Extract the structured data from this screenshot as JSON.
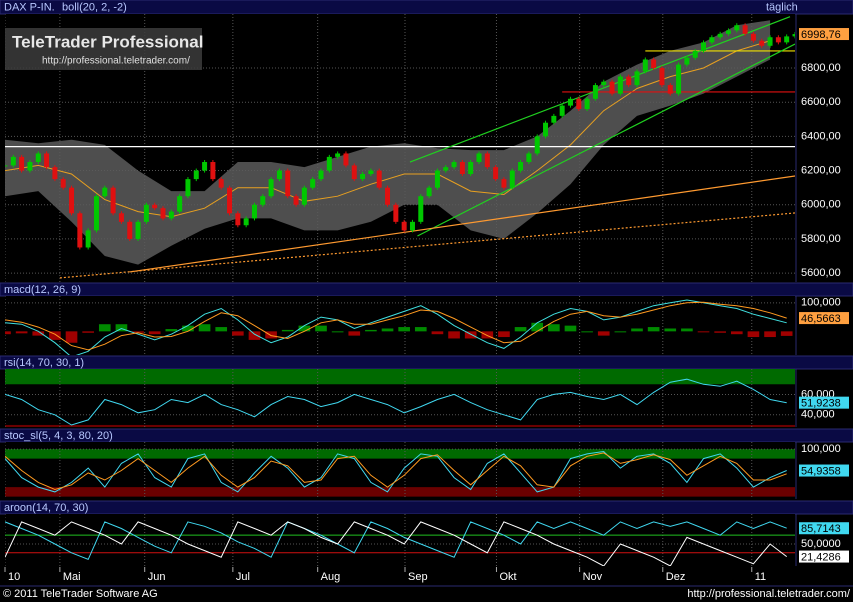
{
  "header": {
    "period": "täglich"
  },
  "watermark": {
    "title": "TeleTrader Professional",
    "url": "http://professional.teletrader.com/"
  },
  "footer": {
    "copyright": "© 2011 TeleTrader Software AG",
    "url": "http://professional.teletrader.com/"
  },
  "chart_data": [
    {
      "type": "candlestick",
      "title": "DAX P-IN.",
      "subtitle": "boll(20, 2, -2)",
      "xlim": [
        0,
        95
      ],
      "ylim": [
        5548,
        7116
      ],
      "yticks": [
        {
          "value": 5600,
          "label": "5600,00"
        },
        {
          "value": 5800,
          "label": "5800,00"
        },
        {
          "value": 6000,
          "label": "6000,00"
        },
        {
          "value": 6200,
          "label": "6200,00"
        },
        {
          "value": 6400,
          "label": "6400,00"
        },
        {
          "value": 6600,
          "label": "6600,00"
        },
        {
          "value": 6800,
          "label": "6800,00"
        }
      ],
      "up_color": "#00c800",
      "down_color": "#e01010",
      "closes": [
        6230,
        6280,
        6200,
        6250,
        6300,
        6220,
        6150,
        6100,
        5950,
        5750,
        5850,
        6050,
        6100,
        5950,
        5900,
        5800,
        5900,
        6000,
        5980,
        5920,
        5960,
        6050,
        6150,
        6200,
        6250,
        6150,
        6100,
        5950,
        5880,
        5920,
        6000,
        6050,
        6150,
        6200,
        6050,
        6000,
        6100,
        6150,
        6200,
        6280,
        6300,
        6230,
        6150,
        6180,
        6200,
        6100,
        6000,
        5900,
        5850,
        5900,
        6050,
        6100,
        6200,
        6220,
        6250,
        6180,
        6250,
        6300,
        6220,
        6150,
        6100,
        6200,
        6250,
        6300,
        6400,
        6480,
        6520,
        6580,
        6620,
        6560,
        6620,
        6700,
        6720,
        6650,
        6750,
        6700,
        6780,
        6850,
        6800,
        6700,
        6650,
        6820,
        6860,
        6900,
        6950,
        6980,
        7000,
        7020,
        7050,
        7000,
        6960,
        6930,
        6980,
        6950,
        6985,
        6998.76
      ],
      "bollinger": {
        "fill": "#5c5c5c",
        "color": "#e8a020",
        "x": [
          0,
          4,
          8,
          12,
          16,
          20,
          24,
          28,
          32,
          36,
          40,
          44,
          48,
          52,
          56,
          60,
          64,
          68,
          72,
          76,
          80,
          84,
          88,
          92
        ],
        "upper": [
          6380,
          6360,
          6380,
          6350,
          6200,
          6080,
          6080,
          6250,
          6250,
          6220,
          6280,
          6340,
          6360,
          6330,
          6320,
          6320,
          6400,
          6550,
          6720,
          6820,
          6900,
          6950,
          7050,
          7080
        ],
        "middle": [
          6200,
          6230,
          6180,
          6030,
          5960,
          5930,
          5980,
          6100,
          6100,
          6020,
          6050,
          6120,
          6180,
          6180,
          6080,
          6060,
          6200,
          6350,
          6550,
          6680,
          6750,
          6800,
          6900,
          6960
        ],
        "lower": [
          6050,
          6080,
          5900,
          5700,
          5650,
          5760,
          5860,
          5920,
          5920,
          5850,
          5850,
          5900,
          6000,
          6000,
          5850,
          5800,
          5950,
          6120,
          6350,
          6520,
          6580,
          6650,
          6750,
          6850
        ]
      },
      "trendlines": [
        {
          "color": "#ffffff",
          "dash": false,
          "x": [
            0,
            95
          ],
          "values": [
            6340,
            6340
          ]
        },
        {
          "color": "#f0e000",
          "dash": false,
          "x": [
            77,
            95
          ],
          "values": [
            6900,
            6900
          ]
        },
        {
          "color": "#e01010",
          "dash": false,
          "x": [
            67,
            95
          ],
          "values": [
            6660,
            6660
          ]
        },
        {
          "color": "#20d020",
          "dash": false,
          "x": [
            48.7,
            94.4
          ],
          "values": [
            6250,
            7100
          ]
        },
        {
          "color": "#20d020",
          "dash": false,
          "x": [
            49.6,
            95
          ],
          "values": [
            5817,
            6940
          ]
        },
        {
          "color": "#ff9a30",
          "dash": false,
          "x": [
            15,
            95
          ],
          "values": [
            5607,
            6168
          ]
        },
        {
          "color": "#ff9a30",
          "dash": true,
          "x": [
            6.6,
            95
          ],
          "values": [
            5572,
            5952
          ]
        }
      ],
      "markers": [
        {
          "value": 6998.76,
          "label": "6998,76",
          "color": "#ffa040"
        }
      ]
    },
    {
      "type": "line",
      "title": "macd(12, 26, 9)",
      "xlim": [
        0,
        95
      ],
      "ylim": [
        -83,
        124
      ],
      "yticks": [
        {
          "value": 100,
          "label": "100,000"
        }
      ],
      "x": [
        0,
        2,
        4,
        6,
        8,
        10,
        12,
        14,
        16,
        18,
        20,
        22,
        24,
        26,
        28,
        30,
        32,
        34,
        36,
        38,
        40,
        42,
        44,
        46,
        48,
        50,
        52,
        54,
        56,
        58,
        60,
        62,
        64,
        66,
        68,
        70,
        72,
        74,
        76,
        78,
        80,
        82,
        84,
        86,
        88,
        90,
        92,
        94
      ],
      "histogram": {
        "up_color": "#008a00",
        "down_color": "#a00000",
        "values": [
          -10,
          -7,
          -15,
          -30,
          -40,
          -5,
          25,
          25,
          -5,
          -10,
          8,
          20,
          25,
          15,
          -15,
          -30,
          -25,
          5,
          20,
          20,
          0,
          -15,
          5,
          10,
          15,
          15,
          -10,
          -25,
          -25,
          -25,
          -20,
          15,
          30,
          25,
          20,
          0,
          -15,
          0,
          10,
          15,
          10,
          10,
          -2,
          -5,
          -10,
          -20,
          -20,
          -16
        ]
      },
      "series": [
        {
          "color": "#40e0e0",
          "values": [
            30,
            25,
            0,
            -40,
            -90,
            -70,
            -20,
            10,
            -10,
            -30,
            -10,
            20,
            60,
            80,
            40,
            -10,
            -40,
            -20,
            20,
            50,
            40,
            10,
            30,
            50,
            70,
            90,
            60,
            20,
            -10,
            -40,
            -60,
            -20,
            30,
            60,
            80,
            70,
            40,
            50,
            70,
            90,
            100,
            110,
            100,
            90,
            80,
            60,
            45,
            30
          ]
        },
        {
          "color": "#ff9a20",
          "values": [
            40,
            32,
            15,
            -10,
            -50,
            -65,
            -45,
            -15,
            -5,
            -20,
            -18,
            0,
            35,
            65,
            55,
            20,
            -15,
            -25,
            0,
            30,
            40,
            25,
            25,
            40,
            55,
            75,
            70,
            45,
            15,
            -15,
            -40,
            -35,
            0,
            35,
            60,
            70,
            55,
            50,
            60,
            75,
            90,
            100,
            102,
            95,
            90,
            80,
            65,
            46.5663
          ]
        }
      ],
      "markers": [
        {
          "value": 46.5663,
          "label": "46,5663",
          "color": "#ffa040"
        }
      ]
    },
    {
      "type": "line",
      "title": "rsi(14, 70, 30, 1)",
      "xlim": [
        0,
        95
      ],
      "ylim": [
        28,
        85
      ],
      "yticks": [
        {
          "value": 40,
          "label": "40,000"
        },
        {
          "value": 60,
          "label": "60,000"
        }
      ],
      "bands": [
        {
          "from": 70,
          "to": 85,
          "color": "#006a00"
        },
        {
          "from": 28,
          "to": 30,
          "color": "#6a0000"
        }
      ],
      "x": [
        0,
        2,
        4,
        6,
        8,
        10,
        12,
        14,
        16,
        18,
        20,
        22,
        24,
        26,
        28,
        30,
        32,
        34,
        36,
        38,
        40,
        42,
        44,
        46,
        48,
        50,
        52,
        54,
        56,
        58,
        60,
        62,
        64,
        66,
        68,
        70,
        72,
        74,
        76,
        78,
        80,
        82,
        84,
        86,
        88,
        90,
        92,
        94
      ],
      "series": [
        {
          "color": "#40d8f0",
          "values": [
            60,
            55,
            45,
            40,
            30,
            35,
            55,
            50,
            42,
            45,
            55,
            52,
            60,
            50,
            45,
            38,
            50,
            58,
            55,
            48,
            52,
            60,
            55,
            50,
            42,
            48,
            55,
            60,
            52,
            45,
            40,
            35,
            55,
            60,
            62,
            58,
            55,
            60,
            50,
            62,
            72,
            75,
            70,
            68,
            73,
            65,
            55,
            51.9238
          ]
        }
      ],
      "markers": [
        {
          "value": 51.9238,
          "label": "51,9238",
          "color": "#40d8f0"
        }
      ]
    },
    {
      "type": "line",
      "title": "stoc_sl(5, 4, 3, 80, 20)",
      "xlim": [
        0,
        95
      ],
      "ylim": [
        -5,
        115
      ],
      "yticks": [
        {
          "value": 100,
          "label": "100,000"
        }
      ],
      "bands": [
        {
          "from": 80,
          "to": 100,
          "color": "#006a00"
        },
        {
          "from": 0,
          "to": 20,
          "color": "#6a0000"
        }
      ],
      "x": [
        0,
        2,
        4,
        6,
        8,
        10,
        12,
        14,
        16,
        18,
        20,
        22,
        24,
        26,
        28,
        30,
        32,
        34,
        36,
        38,
        40,
        42,
        44,
        46,
        48,
        50,
        52,
        54,
        56,
        58,
        60,
        62,
        64,
        66,
        68,
        70,
        72,
        74,
        76,
        78,
        80,
        82,
        84,
        86,
        88,
        90,
        92,
        94
      ],
      "series": [
        {
          "color": "#40d8f0",
          "values": [
            80,
            40,
            20,
            10,
            30,
            60,
            20,
            70,
            90,
            40,
            20,
            80,
            90,
            30,
            10,
            50,
            85,
            60,
            20,
            40,
            90,
            80,
            30,
            10,
            60,
            90,
            85,
            40,
            15,
            70,
            90,
            50,
            10,
            20,
            80,
            90,
            95,
            60,
            85,
            90,
            70,
            30,
            80,
            90,
            60,
            20,
            40,
            54.9358
          ]
        },
        {
          "color": "#ff9a20",
          "values": [
            85,
            55,
            30,
            15,
            25,
            50,
            35,
            55,
            80,
            55,
            30,
            60,
            85,
            45,
            20,
            40,
            75,
            65,
            30,
            35,
            80,
            85,
            45,
            20,
            45,
            80,
            88,
            55,
            25,
            55,
            85,
            65,
            25,
            20,
            65,
            85,
            92,
            70,
            78,
            88,
            78,
            45,
            65,
            85,
            70,
            35,
            35,
            48
          ]
        }
      ],
      "markers": [
        {
          "value": 54.9358,
          "label": "54,9358",
          "color": "#40d8f0"
        }
      ]
    },
    {
      "type": "line",
      "title": "aroon(14, 70, 30)",
      "xlim": [
        0,
        95
      ],
      "ylim": [
        0,
        118
      ],
      "yticks": [
        {
          "value": 50,
          "label": "50,0000"
        }
      ],
      "levels": [
        {
          "value": 70,
          "color": "#20c020"
        },
        {
          "value": 30,
          "color": "#d01010"
        }
      ],
      "xticks": [
        {
          "value": 0,
          "label": "10"
        },
        {
          "value": 6.6,
          "label": "Mai"
        },
        {
          "value": 16.8,
          "label": "Jun"
        },
        {
          "value": 27.4,
          "label": "Jul"
        },
        {
          "value": 37.6,
          "label": "Aug"
        },
        {
          "value": 48.1,
          "label": "Sep"
        },
        {
          "value": 59.1,
          "label": "Okt"
        },
        {
          "value": 69.1,
          "label": "Nov"
        },
        {
          "value": 79.1,
          "label": "Dez"
        },
        {
          "value": 89.8,
          "label": "11"
        }
      ],
      "x": [
        0,
        2,
        4,
        6,
        8,
        10,
        12,
        14,
        16,
        18,
        20,
        22,
        24,
        26,
        28,
        30,
        32,
        34,
        36,
        38,
        40,
        42,
        44,
        46,
        48,
        50,
        52,
        54,
        56,
        58,
        60,
        62,
        64,
        66,
        68,
        70,
        72,
        74,
        76,
        78,
        80,
        82,
        84,
        86,
        88,
        90,
        92,
        94
      ],
      "series": [
        {
          "color": "#40d8f0",
          "values": [
            100,
            85,
            70,
            50,
            30,
            15,
            100,
            85,
            65,
            45,
            30,
            100,
            90,
            75,
            55,
            40,
            20,
            100,
            85,
            70,
            50,
            30,
            100,
            85,
            65,
            50,
            35,
            20,
            100,
            85,
            70,
            50,
            100,
            85,
            100,
            85,
            70,
            100,
            85,
            100,
            90,
            100,
            85,
            70,
            100,
            85,
            100,
            85.7143
          ]
        },
        {
          "color": "#ffffff",
          "values": [
            20,
            100,
            85,
            70,
            100,
            85,
            70,
            50,
            100,
            85,
            70,
            50,
            35,
            20,
            100,
            85,
            70,
            100,
            85,
            65,
            50,
            100,
            85,
            70,
            50,
            100,
            85,
            70,
            50,
            30,
            100,
            85,
            70,
            50,
            35,
            20,
            0,
            50,
            35,
            20,
            0,
            65,
            50,
            35,
            20,
            5,
            50,
            21.4286
          ]
        }
      ],
      "markers": [
        {
          "value": 85.7143,
          "label": "85,7143",
          "color": "#40d8f0"
        },
        {
          "value": 21.4286,
          "label": "21,4286",
          "color": "#ffffff"
        }
      ]
    }
  ]
}
